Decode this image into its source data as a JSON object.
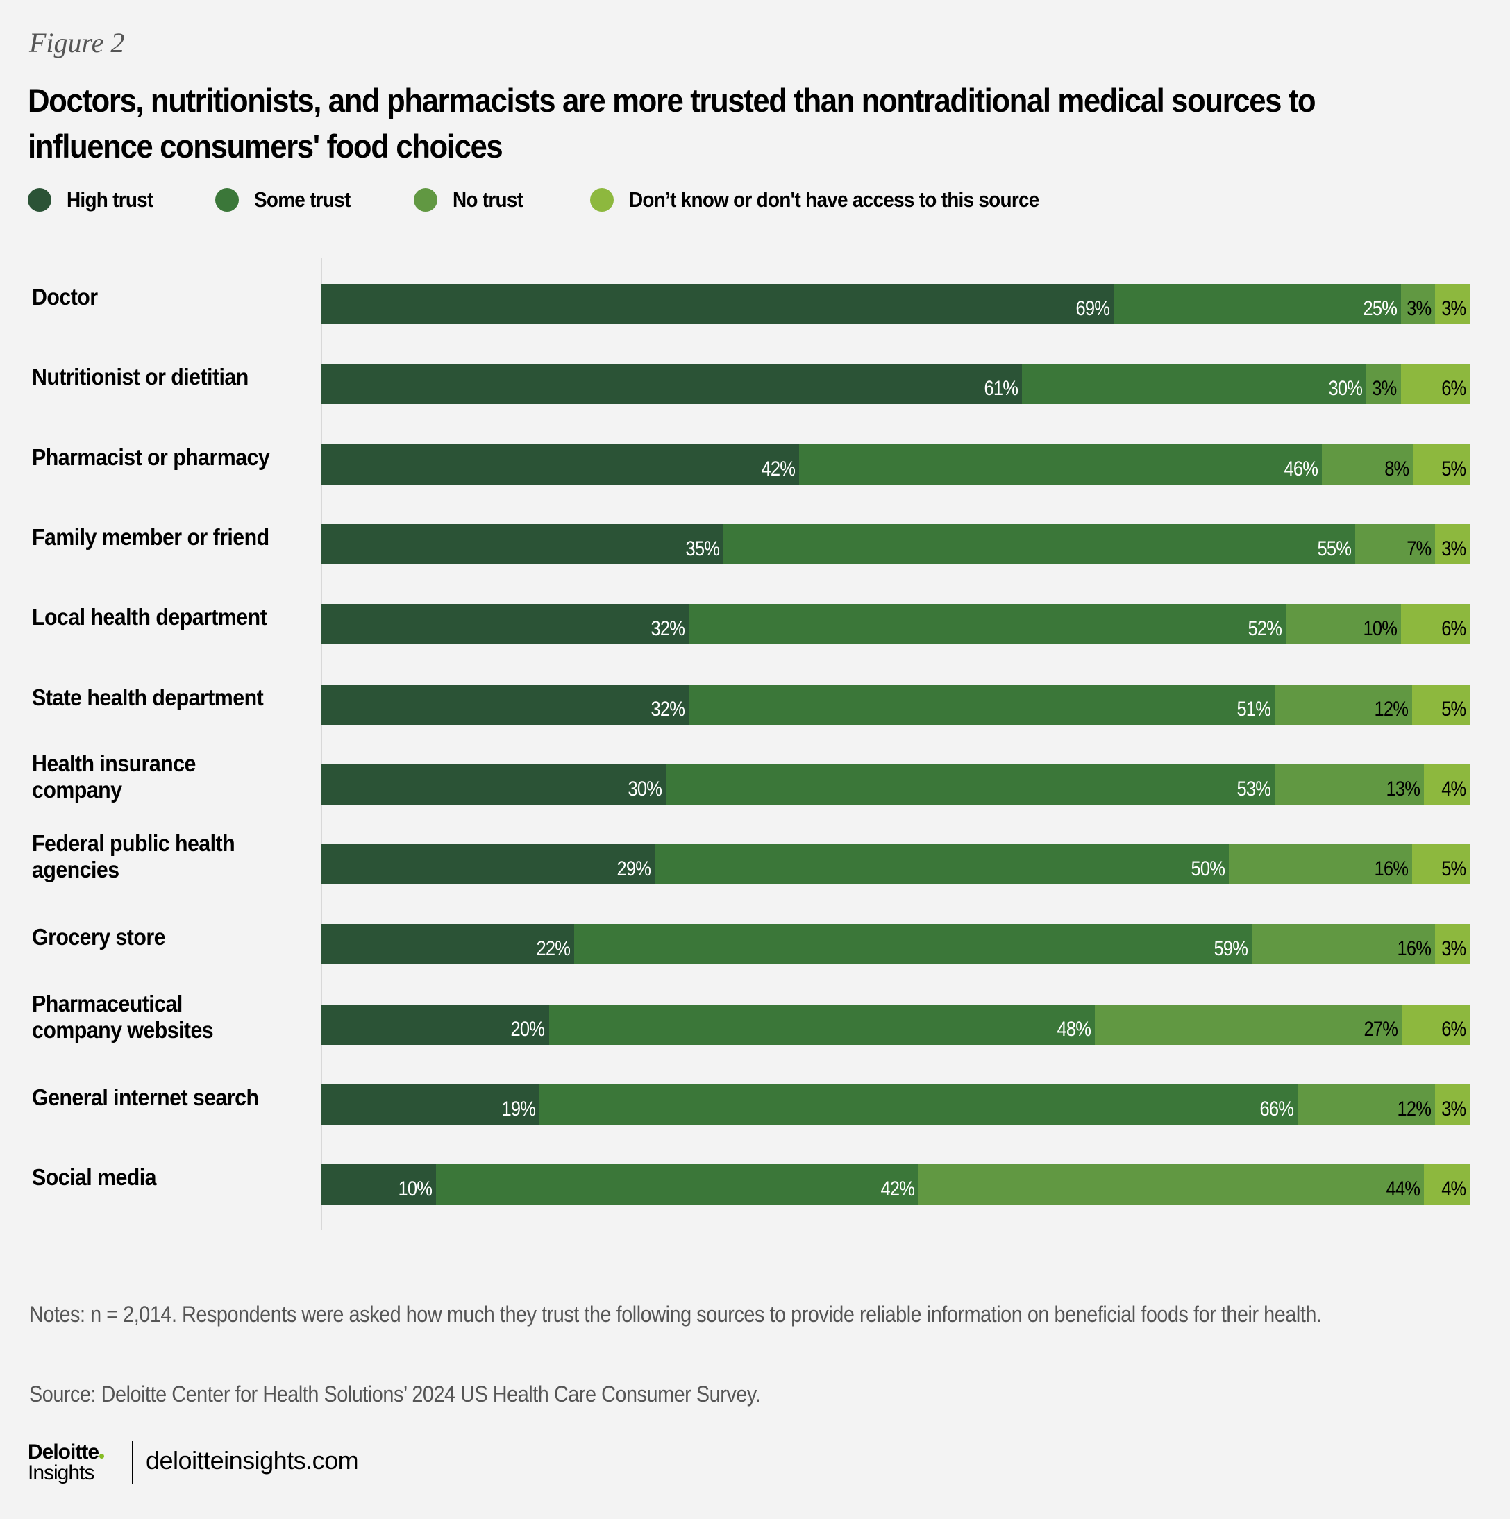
{
  "figure_label": "Figure 2",
  "footnotes": {
    "notes": "Notes: n = 2,014. Respondents were asked how much they trust the following sources to provide reliable information on beneficial foods for their health.",
    "source": "Source: Deloitte Center for Health Solutions’ 2024 US Health Care Consumer Survey."
  },
  "footer": {
    "logo_main": "Deloitte",
    "logo_sub": "Insights",
    "url": "deloitteinsights.com",
    "logo_dot_color": "#86bc25"
  },
  "chart_data": {
    "type": "bar",
    "orientation": "horizontal",
    "stacked": true,
    "title": "Doctors, nutritionists, and pharmacists are more trusted than nontraditional medical sources to influence consumers' food choices",
    "xlabel": "",
    "ylabel": "",
    "xlim": [
      0,
      100
    ],
    "unit": "%",
    "grid": false,
    "legend_position": "top-left",
    "categories": [
      "Doctor",
      "Nutritionist or dietitian",
      "Pharmacist or pharmacy",
      "Family member or friend",
      "Local health department",
      "State health department",
      "Health insurance company",
      "Federal public health agencies",
      "Grocery store",
      "Pharmaceutical company websites",
      "General internet search",
      "Social media"
    ],
    "category_lines": [
      [
        "Doctor"
      ],
      [
        "Nutritionist or dietitian"
      ],
      [
        "Pharmacist or pharmacy"
      ],
      [
        "Family member or friend"
      ],
      [
        "Local health department"
      ],
      [
        "State health department"
      ],
      [
        "Health insurance",
        "company"
      ],
      [
        "Federal public health",
        "agencies"
      ],
      [
        "Grocery store"
      ],
      [
        "Pharmaceutical",
        "company websites"
      ],
      [
        "General internet search"
      ],
      [
        "Social media"
      ]
    ],
    "series": [
      {
        "name": "High trust",
        "color": "#2b5336",
        "label_color": "#ffffff",
        "values": [
          69,
          61,
          42,
          35,
          32,
          32,
          30,
          29,
          22,
          20,
          19,
          10
        ]
      },
      {
        "name": "Some trust",
        "color": "#3b7739",
        "label_color": "#ffffff",
        "values": [
          25,
          30,
          46,
          55,
          52,
          51,
          53,
          50,
          59,
          48,
          66,
          42
        ]
      },
      {
        "name": "No trust",
        "color": "#619842",
        "label_color": "#000000",
        "values": [
          3,
          3,
          8,
          7,
          10,
          12,
          13,
          16,
          16,
          27,
          12,
          44
        ]
      },
      {
        "name": "Don’t know or don't have access to this source",
        "color": "#8db83e",
        "label_color": "#000000",
        "values": [
          3,
          6,
          5,
          3,
          6,
          5,
          4,
          5,
          3,
          6,
          3,
          4
        ]
      }
    ]
  }
}
